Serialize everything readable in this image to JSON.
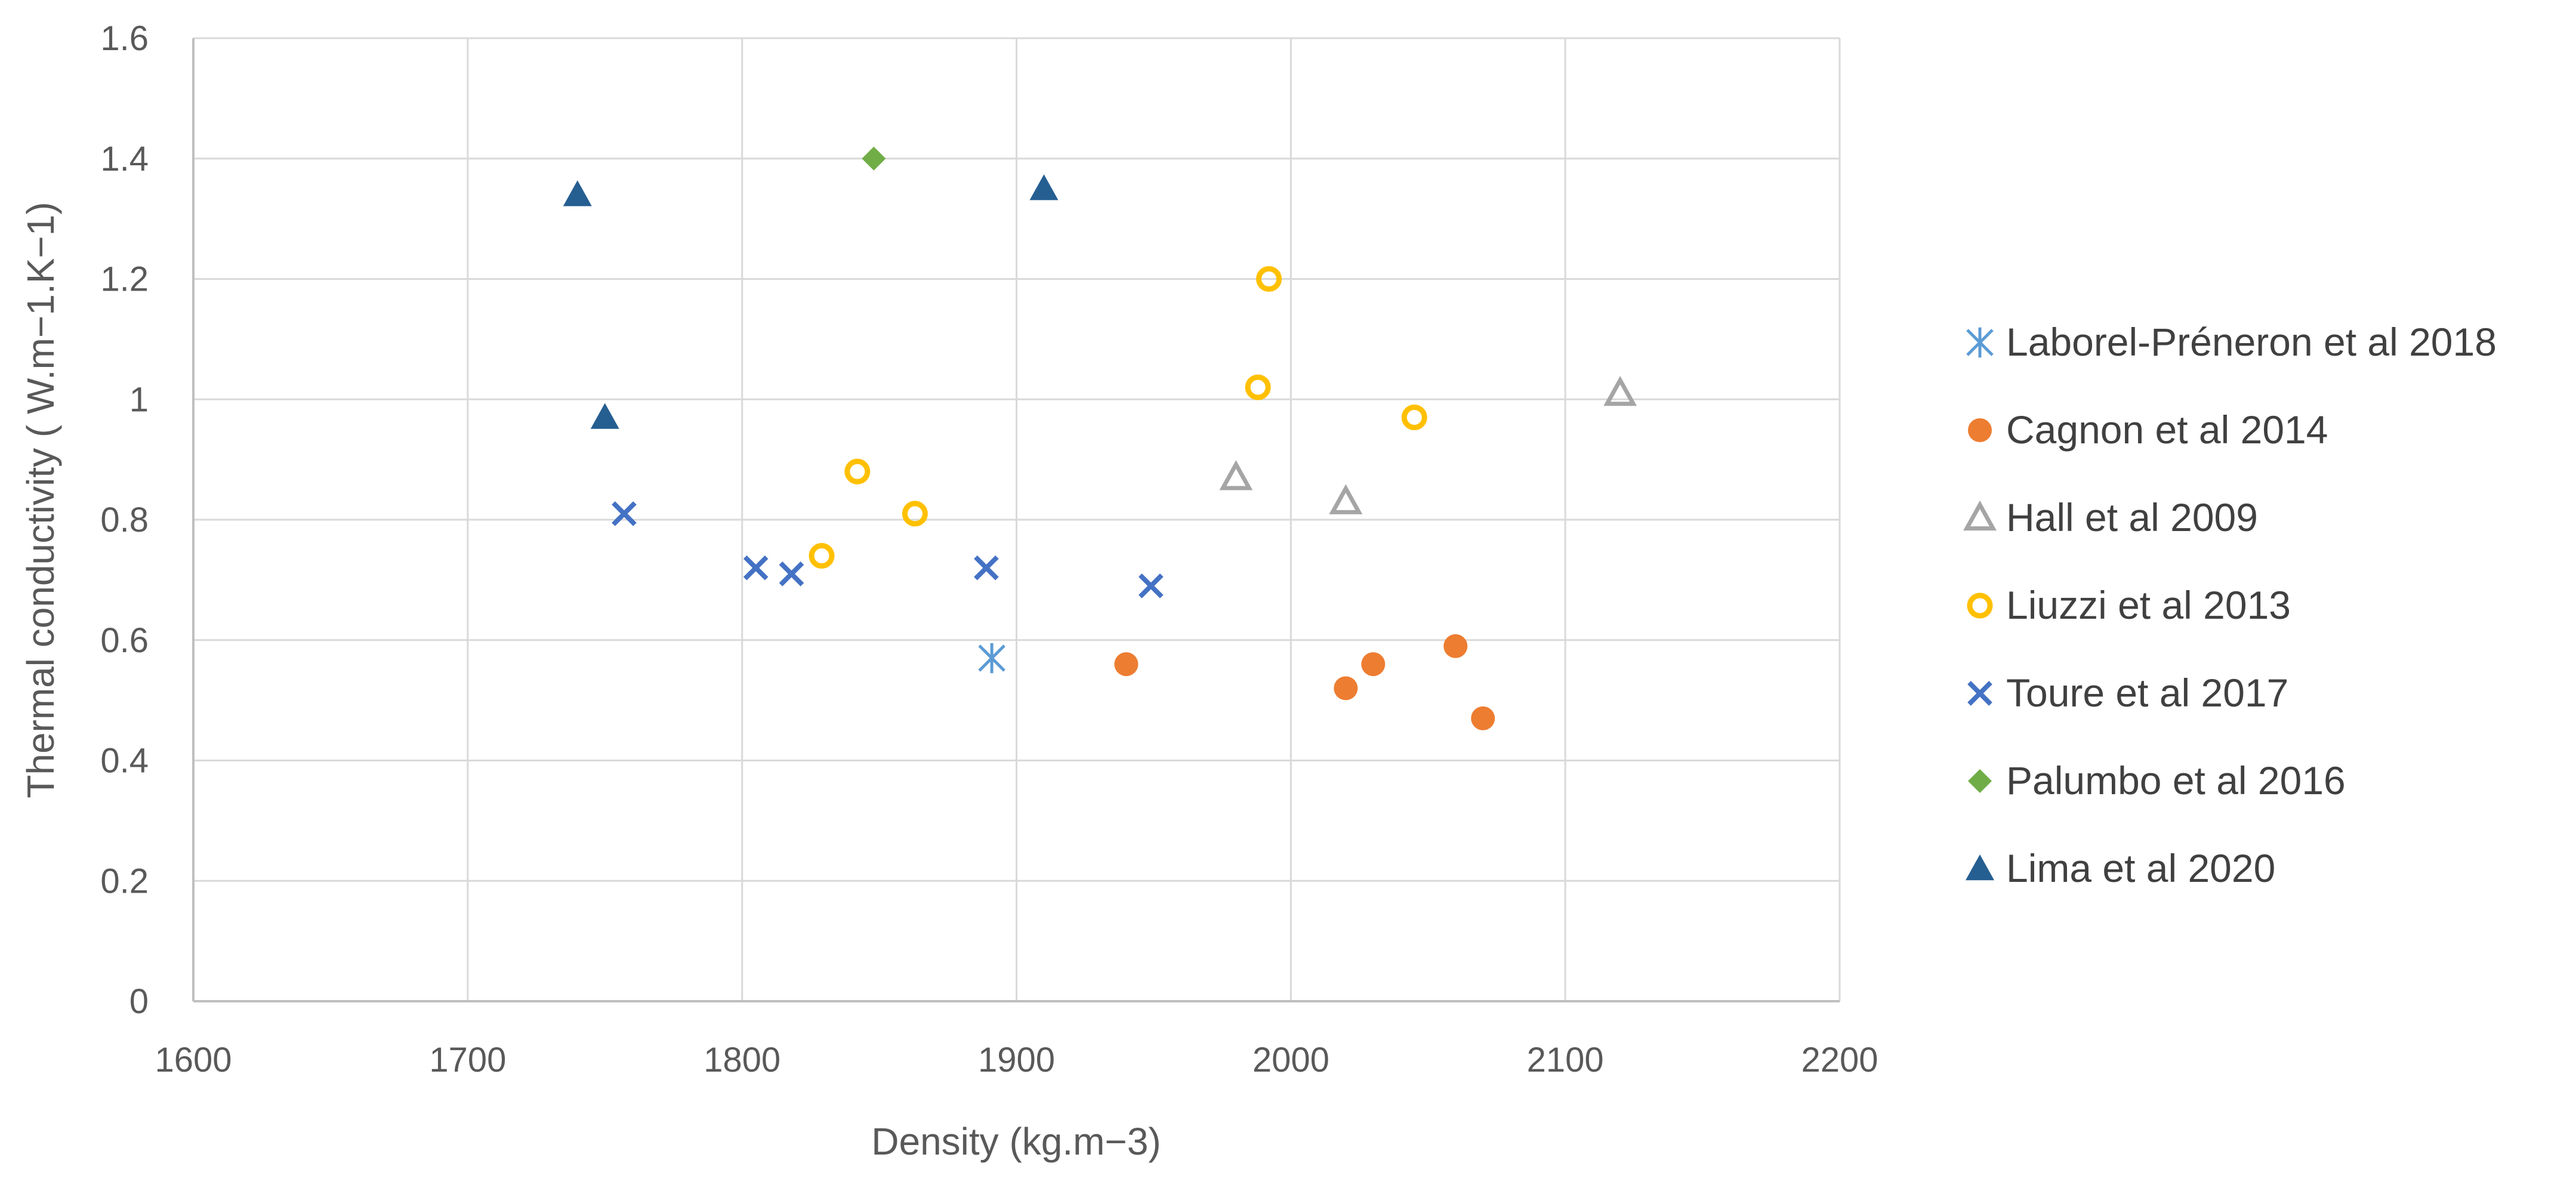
{
  "chart_data": {
    "type": "scatter",
    "title": "",
    "xlabel": "Density (kg.m−3)",
    "ylabel": "Thermal conductivity ( W.m−1.K−1)",
    "xlim": [
      1600,
      2200
    ],
    "ylim": [
      0,
      1.6
    ],
    "xticks": [
      1600,
      1700,
      1800,
      1900,
      2000,
      2100,
      2200
    ],
    "yticks": [
      0,
      0.2,
      0.4,
      0.6,
      0.8,
      1,
      1.2,
      1.4,
      1.6
    ],
    "xtick_labels": [
      "1600",
      "1700",
      "1800",
      "1900",
      "2000",
      "2100",
      "2200"
    ],
    "ytick_labels": [
      "0",
      "0.2",
      "0.4",
      "0.6",
      "0.8",
      "1",
      "1.2",
      "1.4",
      "1.6"
    ],
    "grid": true,
    "legend_position": "right",
    "series": [
      {
        "name": "Laborel-Préneron et al 2018",
        "marker": "asterisk",
        "color": "#5B9BD5",
        "points": [
          [
            1891,
            0.57
          ]
        ]
      },
      {
        "name": "Cagnon et al 2014",
        "marker": "circle",
        "color": "#ED7D31",
        "points": [
          [
            1940,
            0.56
          ],
          [
            2020,
            0.52
          ],
          [
            2030,
            0.56
          ],
          [
            2060,
            0.59
          ],
          [
            2070,
            0.47
          ]
        ]
      },
      {
        "name": "Hall et al 2009",
        "marker": "triangle-open",
        "color": "#A5A5A5",
        "points": [
          [
            1980,
            0.87
          ],
          [
            2020,
            0.83
          ],
          [
            2120,
            1.01
          ]
        ]
      },
      {
        "name": "Liuzzi et al 2013",
        "marker": "circle-open",
        "color": "#FFC000",
        "points": [
          [
            1829,
            0.74
          ],
          [
            1842,
            0.88
          ],
          [
            1863,
            0.81
          ],
          [
            1988,
            1.02
          ],
          [
            1992,
            1.2
          ],
          [
            2045,
            0.97
          ]
        ]
      },
      {
        "name": "Toure et al 2017",
        "marker": "x",
        "color": "#4472C4",
        "points": [
          [
            1757,
            0.81
          ],
          [
            1805,
            0.72
          ],
          [
            1818,
            0.71
          ],
          [
            1889,
            0.72
          ],
          [
            1949,
            0.69
          ]
        ]
      },
      {
        "name": "Palumbo et al 2016",
        "marker": "diamond",
        "color": "#70AD47",
        "points": [
          [
            1848,
            1.4
          ]
        ]
      },
      {
        "name": "Lima et al 2020",
        "marker": "triangle",
        "color": "#255E91",
        "points": [
          [
            1740,
            1.34
          ],
          [
            1750,
            0.97
          ],
          [
            1910,
            1.35
          ]
        ]
      }
    ]
  }
}
